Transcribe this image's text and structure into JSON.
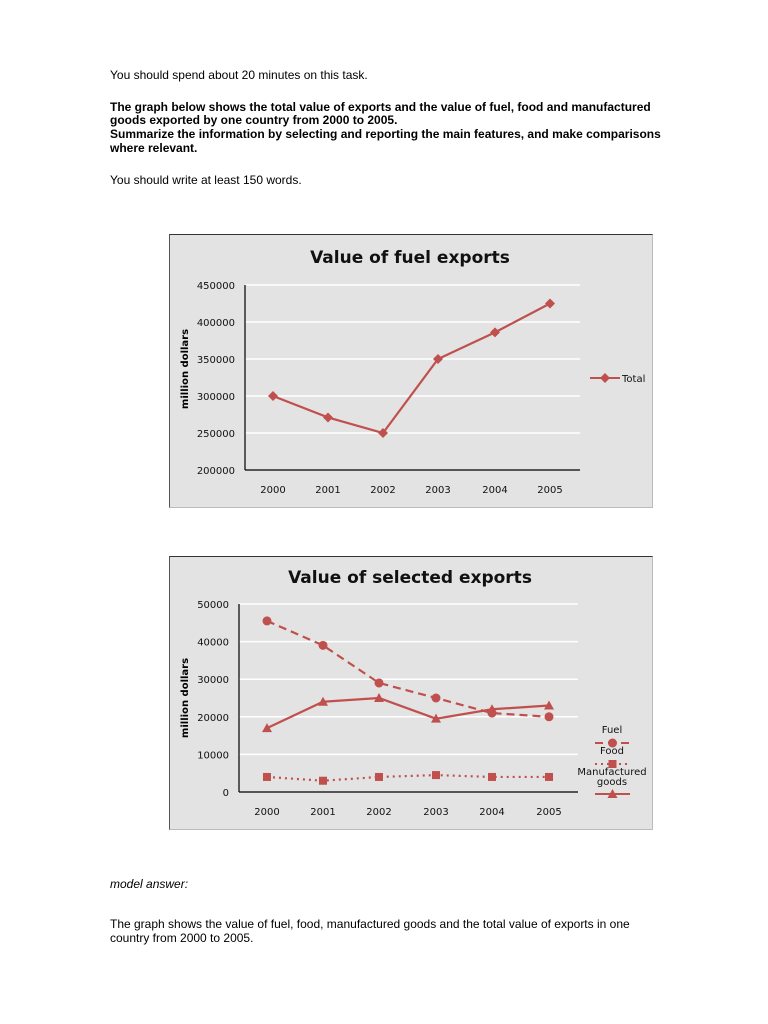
{
  "intro": {
    "time_note": "You should spend about 20 minutes on this task.",
    "task_line1": "The graph below shows the total value of exports and the value of fuel, food and manufactured",
    "task_line2": "goods exported by one country from 2000 to 2005.",
    "task_line3": "Summarize the information by selecting and reporting the main features, and make comparisons",
    "task_line4": "where relevant.",
    "word_note": "You should write at least 150 words."
  },
  "model": {
    "label": "model answer:",
    "line1": "The graph shows the value of fuel, food, manufactured goods and the total value of exports in one",
    "line2": "country from 2000 to 2005."
  },
  "colors": {
    "series": "#c0504d",
    "background": "#e3e3e3",
    "gridline": "#ffffff"
  },
  "chart_data": [
    {
      "type": "line",
      "title": "Value of fuel exports",
      "xlabel": "",
      "ylabel": "million dollars",
      "categories": [
        "2000",
        "2001",
        "2002",
        "2003",
        "2004",
        "2005"
      ],
      "ylim": [
        200000,
        450000
      ],
      "yticks": [
        "200000",
        "250000",
        "300000",
        "350000",
        "400000",
        "450000"
      ],
      "grid": true,
      "legend_position": "right",
      "series": [
        {
          "name": "Total",
          "marker": "diamond",
          "style": "solid",
          "values": [
            300000,
            271000,
            250000,
            350000,
            386000,
            425000
          ]
        }
      ]
    },
    {
      "type": "line",
      "title": "Value of selected exports",
      "xlabel": "",
      "ylabel": "million dollars",
      "categories": [
        "2000",
        "2001",
        "2002",
        "2003",
        "2004",
        "2005"
      ],
      "ylim": [
        0,
        50000
      ],
      "yticks": [
        "0",
        "10000",
        "20000",
        "30000",
        "40000",
        "50000"
      ],
      "grid": true,
      "legend_position": "right",
      "series": [
        {
          "name": "Fuel",
          "marker": "circle",
          "style": "dashed",
          "values": [
            45500,
            39000,
            29000,
            25000,
            21000,
            20000
          ]
        },
        {
          "name": "Food",
          "marker": "square",
          "style": "dotted",
          "values": [
            4000,
            3000,
            4000,
            4500,
            4000,
            4000
          ]
        },
        {
          "name": "Manufactured goods",
          "marker": "triangle",
          "style": "solid",
          "values": [
            17000,
            24000,
            25000,
            19500,
            22000,
            23000
          ]
        }
      ]
    }
  ]
}
